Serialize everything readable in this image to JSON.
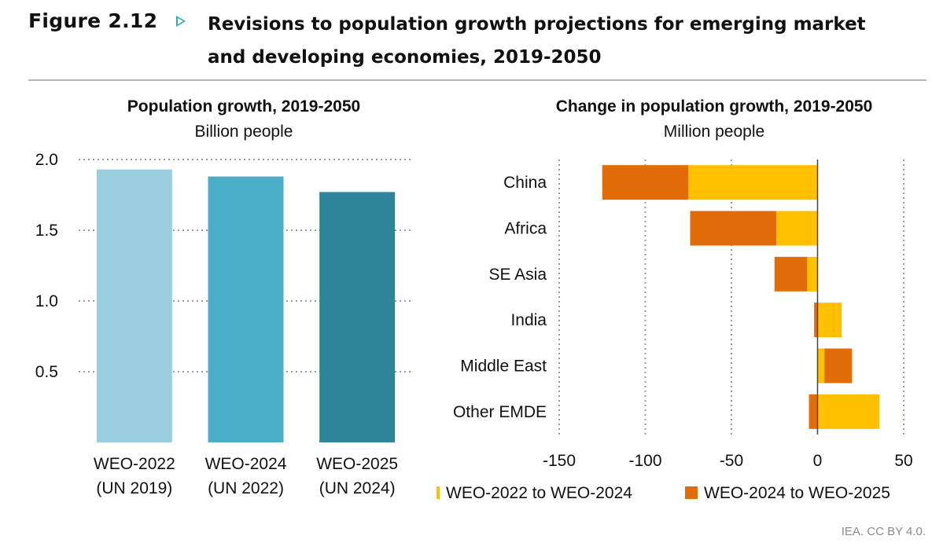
{
  "figure": {
    "label": "Figure 2.12",
    "title": "Revisions to population growth projections for emerging market and developing economies, 2019-2050",
    "credit": "IEA. CC BY 4.0."
  },
  "chart_data": [
    {
      "type": "bar",
      "title": "Population growth, 2019-2050",
      "subtitle": "Billion people",
      "categories": [
        [
          "WEO-2022",
          "(UN 2019)"
        ],
        [
          "WEO-2024",
          "(UN 2022)"
        ],
        [
          "WEO-2025",
          "(UN 2024)"
        ]
      ],
      "values": [
        1.93,
        1.88,
        1.77
      ],
      "colors": [
        "#9bcfe0",
        "#4aaec8",
        "#2e8499"
      ],
      "ylim": [
        0,
        2.0
      ],
      "yticks": [
        0.5,
        1.0,
        1.5,
        2.0
      ],
      "ytick_labels": [
        "0.5",
        "1.0",
        "1.5",
        "2.0"
      ],
      "grid": true
    },
    {
      "type": "bar",
      "orientation": "horizontal",
      "stacked": true,
      "title": "Change in population growth, 2019-2050",
      "subtitle": "Million people",
      "categories": [
        "China",
        "Africa",
        "SE Asia",
        "India",
        "Middle East",
        "Other EMDE"
      ],
      "series": [
        {
          "name": "WEO-2022 to WEO-2024",
          "color": "#ffc000",
          "values": [
            -75,
            -24,
            -6,
            14,
            4,
            36
          ]
        },
        {
          "name": "WEO-2024 to WEO-2025",
          "color": "#e36c0a",
          "values": [
            -50,
            -50,
            -19,
            -2,
            16,
            -5
          ]
        }
      ],
      "xlim": [
        -150,
        50
      ],
      "xticks": [
        -150,
        -100,
        -50,
        0,
        50
      ],
      "xtick_labels": [
        "-150",
        "-100",
        "-50",
        "0",
        "50"
      ],
      "legend": "bottom",
      "grid": true
    }
  ]
}
